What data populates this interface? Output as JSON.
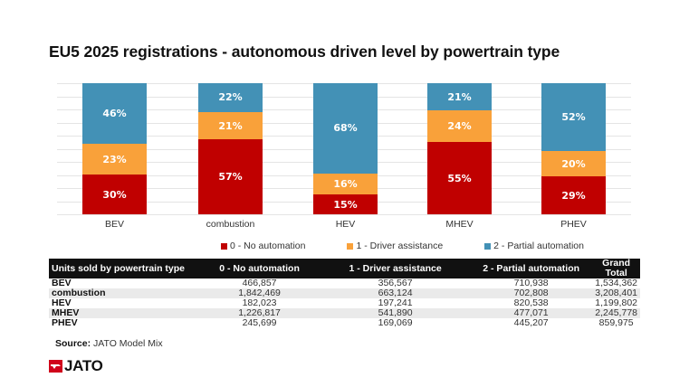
{
  "title": "EU5 2025 registrations - autonomous driven level by powertrain type",
  "colors": {
    "no_automation": "#c00000",
    "driver_assistance": "#f9a13a",
    "partial_automation": "#4391b6",
    "table_header_bg": "#111111",
    "table_alt_row_bg": "#eaeaea",
    "brand_red": "#d0021b"
  },
  "chart_data": {
    "type": "bar",
    "stacked": true,
    "percent_stacked": true,
    "title": "EU5 2025 registrations - autonomous driven level by powertrain type",
    "xlabel": "",
    "ylabel": "",
    "ylim": [
      0,
      100
    ],
    "grid": true,
    "legend_position": "bottom",
    "categories": [
      "BEV",
      "combustion",
      "HEV",
      "MHEV",
      "PHEV"
    ],
    "series": [
      {
        "name": "0 - No automation",
        "color": "#c00000",
        "values": [
          30,
          57,
          15,
          55,
          29
        ],
        "labels": [
          "30%",
          "57%",
          "15%",
          "55%",
          "29%"
        ]
      },
      {
        "name": "1 - Driver assistance",
        "color": "#f9a13a",
        "values": [
          23,
          21,
          16,
          24,
          20
        ],
        "labels": [
          "23%",
          "21%",
          "16%",
          "24%",
          "20%"
        ]
      },
      {
        "name": "2 - Partial automation",
        "color": "#4391b6",
        "values": [
          46,
          22,
          68,
          21,
          52
        ],
        "labels": [
          "46%",
          "22%",
          "68%",
          "21%",
          "52%"
        ]
      }
    ]
  },
  "legend": [
    {
      "label": "0 - No automation"
    },
    {
      "label": "1 - Driver assistance"
    },
    {
      "label": "2 - Partial automation"
    }
  ],
  "table": {
    "headers": [
      "Units sold by powertrain type",
      "0 - No automation",
      "1 - Driver assistance",
      "2 - Partial automation",
      "Grand Total"
    ],
    "rows": [
      [
        "BEV",
        "466,857",
        "356,567",
        "710,938",
        "1,534,362"
      ],
      [
        "combustion",
        "1,842,469",
        "663,124",
        "702,808",
        "3,208,401"
      ],
      [
        "HEV",
        "182,023",
        "197,241",
        "820,538",
        "1,199,802"
      ],
      [
        "MHEV",
        "1,226,817",
        "541,890",
        "477,071",
        "2,245,778"
      ],
      [
        "PHEV",
        "245,699",
        "169,069",
        "445,207",
        "859,975"
      ]
    ]
  },
  "source": {
    "label": "Source:",
    "text": " JATO Model Mix"
  },
  "logo": {
    "text": "JATO"
  }
}
